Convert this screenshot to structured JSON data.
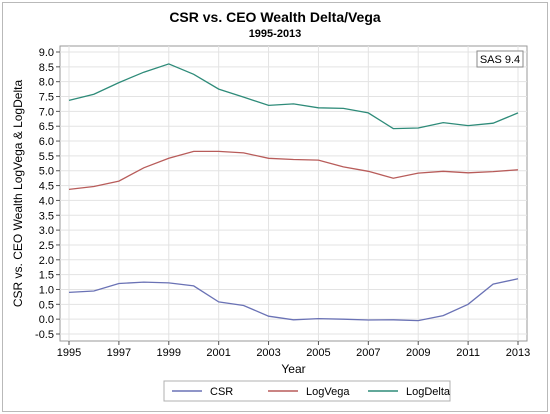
{
  "chart_data": {
    "type": "line",
    "title": "CSR vs. CEO Wealth Delta/Vega",
    "subtitle": "1995-2013",
    "xlabel": "Year",
    "ylabel": "CSR vs. CEO Wealth LogVega & LogDelta",
    "note": "SAS 9.4",
    "xlim": [
      1995,
      2013
    ],
    "ylim": [
      -0.5,
      9.0
    ],
    "x_ticks": [
      1995,
      1997,
      1999,
      2001,
      2003,
      2005,
      2007,
      2009,
      2011,
      2013
    ],
    "y_ticks": [
      -0.5,
      0.0,
      0.5,
      1.0,
      1.5,
      2.0,
      2.5,
      3.0,
      3.5,
      4.0,
      4.5,
      5.0,
      5.5,
      6.0,
      6.5,
      7.0,
      7.5,
      8.0,
      8.5,
      9.0
    ],
    "grid": true,
    "legend_position": "bottom",
    "x": [
      1995,
      1996,
      1997,
      1998,
      1999,
      2000,
      2001,
      2002,
      2003,
      2004,
      2005,
      2006,
      2007,
      2008,
      2009,
      2010,
      2011,
      2012,
      2013
    ],
    "series": [
      {
        "name": "CSR",
        "color": "#6a72b5",
        "values": [
          0.9,
          0.95,
          1.2,
          1.25,
          1.22,
          1.12,
          0.58,
          0.46,
          0.1,
          -0.02,
          0.02,
          0.0,
          -0.03,
          -0.02,
          -0.05,
          0.12,
          0.5,
          1.18,
          1.36
        ]
      },
      {
        "name": "LogVega",
        "color": "#b85c5a",
        "values": [
          4.37,
          4.47,
          4.65,
          5.1,
          5.42,
          5.65,
          5.65,
          5.6,
          5.42,
          5.38,
          5.36,
          5.13,
          4.98,
          4.75,
          4.92,
          4.98,
          4.93,
          4.97,
          5.03
        ]
      },
      {
        "name": "LogDelta",
        "color": "#2e8b79",
        "values": [
          7.37,
          7.58,
          7.97,
          8.32,
          8.6,
          8.25,
          7.75,
          7.48,
          7.2,
          7.25,
          7.12,
          7.1,
          6.95,
          6.42,
          6.44,
          6.62,
          6.52,
          6.6,
          6.95
        ]
      }
    ]
  }
}
